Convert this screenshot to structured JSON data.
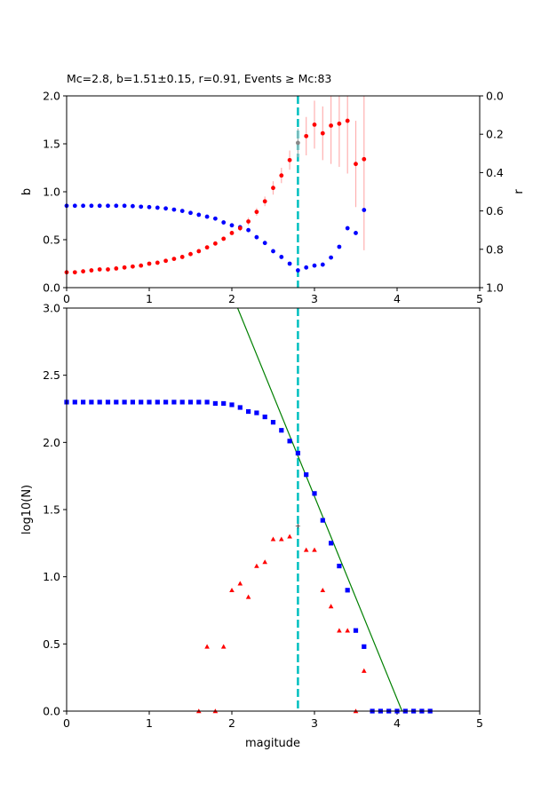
{
  "chart_data": [
    {
      "type": "scatter",
      "title": "Mc=2.8, b=1.51±0.15, r=0.91, Events ≥ Mc:83",
      "xlabel": "",
      "ylabel": "b",
      "y2label": "r",
      "xlim": [
        0,
        5
      ],
      "ylim": [
        0,
        2
      ],
      "y2lim": [
        1,
        0
      ],
      "xticks": [
        "0",
        "1",
        "2",
        "3",
        "4",
        "5"
      ],
      "yticks": [
        "0.0",
        "0.5",
        "1.0",
        "1.5",
        "2.0"
      ],
      "y2ticks": [
        "0.0",
        "0.2",
        "0.4",
        "0.6",
        "0.8",
        "1.0"
      ],
      "mc_line": 2.8,
      "mc_point": {
        "x": 2.8,
        "y": 1.51,
        "err": 0.15
      },
      "colors": {
        "b": "#ff0000",
        "r": "#0000ff",
        "mc": "#00bfbf",
        "err": "#ffb0b0"
      },
      "series": [
        {
          "name": "b",
          "axis": "left",
          "x": [
            0.0,
            0.1,
            0.2,
            0.3,
            0.4,
            0.5,
            0.6,
            0.7,
            0.8,
            0.9,
            1.0,
            1.1,
            1.2,
            1.3,
            1.4,
            1.5,
            1.6,
            1.7,
            1.8,
            1.9,
            2.0,
            2.1,
            2.2,
            2.3,
            2.4,
            2.5,
            2.6,
            2.7,
            2.9,
            3.0,
            3.1,
            3.2,
            3.3,
            3.4,
            3.5,
            3.6
          ],
          "values": [
            0.16,
            0.16,
            0.17,
            0.18,
            0.19,
            0.19,
            0.2,
            0.21,
            0.22,
            0.23,
            0.25,
            0.26,
            0.28,
            0.3,
            0.32,
            0.35,
            0.38,
            0.42,
            0.46,
            0.51,
            0.57,
            0.62,
            0.69,
            0.79,
            0.9,
            1.04,
            1.17,
            1.33,
            1.58,
            1.7,
            1.61,
            1.69,
            1.71,
            1.74,
            1.29,
            1.34
          ],
          "err": [
            0.01,
            0.01,
            0.01,
            0.01,
            0.01,
            0.01,
            0.01,
            0.01,
            0.01,
            0.01,
            0.01,
            0.01,
            0.01,
            0.01,
            0.01,
            0.01,
            0.02,
            0.02,
            0.02,
            0.02,
            0.02,
            0.03,
            0.04,
            0.04,
            0.05,
            0.07,
            0.08,
            0.1,
            0.2,
            0.25,
            0.28,
            0.4,
            0.45,
            0.55,
            0.45,
            0.95
          ]
        },
        {
          "name": "r",
          "axis": "right",
          "x": [
            0.0,
            0.1,
            0.2,
            0.3,
            0.4,
            0.5,
            0.6,
            0.7,
            0.8,
            0.9,
            1.0,
            1.1,
            1.2,
            1.3,
            1.4,
            1.5,
            1.6,
            1.7,
            1.8,
            1.9,
            2.0,
            2.1,
            2.2,
            2.3,
            2.4,
            2.5,
            2.6,
            2.7,
            2.8,
            2.9,
            3.0,
            3.1,
            3.2,
            3.3,
            3.4,
            3.5,
            3.6
          ],
          "values": [
            0.573,
            0.573,
            0.573,
            0.573,
            0.573,
            0.573,
            0.573,
            0.573,
            0.575,
            0.578,
            0.58,
            0.583,
            0.587,
            0.593,
            0.6,
            0.61,
            0.62,
            0.63,
            0.64,
            0.66,
            0.675,
            0.685,
            0.7,
            0.737,
            0.767,
            0.81,
            0.84,
            0.875,
            0.91,
            0.895,
            0.885,
            0.88,
            0.843,
            0.787,
            0.69,
            0.715,
            0.595
          ]
        }
      ]
    },
    {
      "type": "scatter",
      "title": "",
      "xlabel": "magitude",
      "ylabel": "log10(N)",
      "xlim": [
        0,
        5
      ],
      "ylim": [
        0,
        3
      ],
      "xticks": [
        "0",
        "1",
        "2",
        "3",
        "4",
        "5"
      ],
      "yticks": [
        "0.0",
        "0.5",
        "1.0",
        "1.5",
        "2.0",
        "2.5",
        "3.0"
      ],
      "mc_line": 2.8,
      "fit_line": {
        "x": [
          2.07,
          4.06
        ],
        "y": [
          3.0,
          0.0
        ]
      },
      "colors": {
        "cumulative": "#0000ff",
        "incremental": "#ff0000",
        "fit": "#008000",
        "mc": "#00bfbf"
      },
      "series": [
        {
          "name": "cumulative",
          "marker": "square",
          "x": [
            0.0,
            0.1,
            0.2,
            0.3,
            0.4,
            0.5,
            0.6,
            0.7,
            0.8,
            0.9,
            1.0,
            1.1,
            1.2,
            1.3,
            1.4,
            1.5,
            1.6,
            1.7,
            1.8,
            1.9,
            2.0,
            2.1,
            2.2,
            2.3,
            2.4,
            2.5,
            2.6,
            2.7,
            2.8,
            2.9,
            3.0,
            3.1,
            3.2,
            3.3,
            3.4,
            3.5,
            3.6,
            3.7,
            3.8,
            3.9,
            4.0,
            4.1,
            4.2,
            4.3,
            4.4
          ],
          "values": [
            2.3,
            2.3,
            2.3,
            2.3,
            2.3,
            2.3,
            2.3,
            2.3,
            2.3,
            2.3,
            2.3,
            2.3,
            2.3,
            2.3,
            2.3,
            2.3,
            2.3,
            2.3,
            2.29,
            2.29,
            2.28,
            2.26,
            2.23,
            2.22,
            2.19,
            2.15,
            2.09,
            2.01,
            1.92,
            1.76,
            1.62,
            1.42,
            1.25,
            1.08,
            0.9,
            0.6,
            0.48,
            0.0,
            0.0,
            0.0,
            0.0,
            0.0,
            0.0,
            0.0,
            0.0
          ]
        },
        {
          "name": "incremental",
          "marker": "triangle",
          "x": [
            1.6,
            1.7,
            1.8,
            1.9,
            2.0,
            2.1,
            2.2,
            2.3,
            2.4,
            2.5,
            2.6,
            2.7,
            2.9,
            3.0,
            3.1,
            3.2,
            3.3,
            3.4,
            3.5,
            3.6
          ],
          "values": [
            0.0,
            0.48,
            0.0,
            0.48,
            0.9,
            0.95,
            0.85,
            1.08,
            1.11,
            1.28,
            1.28,
            1.3,
            1.2,
            1.2,
            0.9,
            0.78,
            0.6,
            0.6,
            0.0,
            0.3
          ]
        }
      ]
    }
  ]
}
